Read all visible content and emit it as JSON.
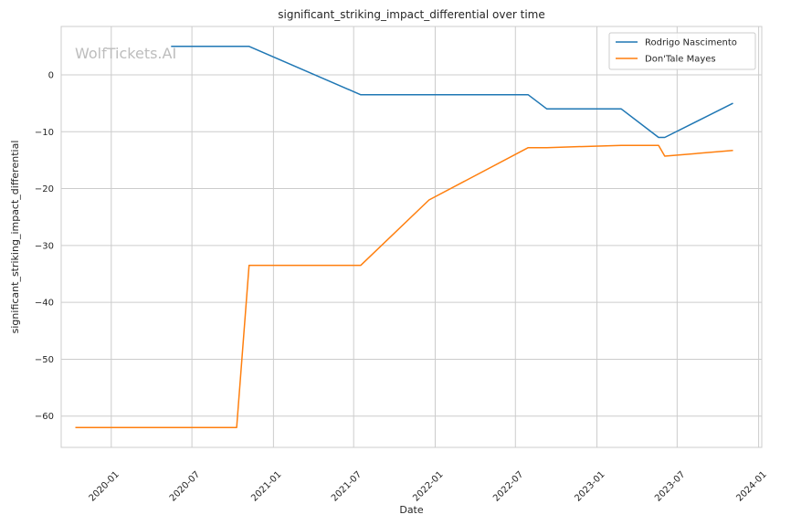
{
  "chart_data": {
    "type": "line",
    "title": "significant_striking_impact_differential over time",
    "xlabel": "Date",
    "ylabel": "significant_striking_impact_differential",
    "watermark": "WolfTickets.AI",
    "ylim": [
      -65.5,
      8.5
    ],
    "xlim": [
      "2019-09-10",
      "2024-01-08"
    ],
    "yticks": [
      0,
      -10,
      -20,
      -30,
      -40,
      -50,
      -60
    ],
    "ytick_labels": [
      "0",
      "−10",
      "−20",
      "−30",
      "−40",
      "−50",
      "−60"
    ],
    "xticks": [
      "2020-01-01",
      "2020-07-01",
      "2021-01-01",
      "2021-07-01",
      "2022-01-01",
      "2022-07-01",
      "2023-01-01",
      "2023-07-01",
      "2024-01-01"
    ],
    "xtick_labels": [
      "2020-01",
      "2020-07",
      "2021-01",
      "2021-07",
      "2022-01",
      "2022-07",
      "2023-01",
      "2023-07",
      "2024-01"
    ],
    "grid": true,
    "legend_position": "top-right",
    "series": [
      {
        "name": "Rodrigo Nascimento",
        "color": "#1f77b4",
        "points": [
          [
            "2020-05-15",
            5.0
          ],
          [
            "2020-11-07",
            5.0
          ],
          [
            "2021-07-17",
            -3.5
          ],
          [
            "2022-07-30",
            -3.5
          ],
          [
            "2022-09-10",
            -6.0
          ],
          [
            "2023-02-25",
            -6.0
          ],
          [
            "2023-05-20",
            -11.0
          ],
          [
            "2023-06-03",
            -11.0
          ],
          [
            "2023-11-04",
            -5.0
          ]
        ]
      },
      {
        "name": "Don'Tale Mayes",
        "color": "#ff7f0e",
        "points": [
          [
            "2019-10-12",
            -62.0
          ],
          [
            "2020-10-10",
            -62.0
          ],
          [
            "2020-11-07",
            -33.5
          ],
          [
            "2021-07-17",
            -33.5
          ],
          [
            "2021-12-18",
            -22.0
          ],
          [
            "2022-07-30",
            -12.8
          ],
          [
            "2022-09-10",
            -12.8
          ],
          [
            "2023-02-25",
            -12.4
          ],
          [
            "2023-05-20",
            -12.4
          ],
          [
            "2023-06-03",
            -14.3
          ],
          [
            "2023-11-04",
            -13.3
          ]
        ]
      }
    ]
  }
}
